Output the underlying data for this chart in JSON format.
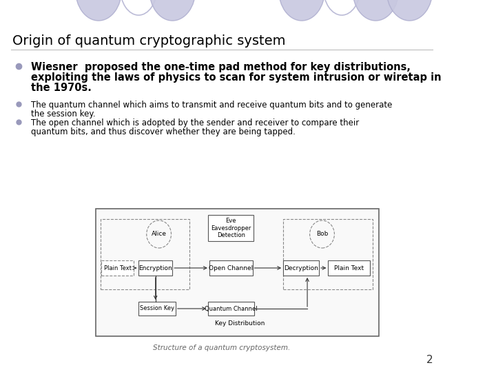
{
  "title": "Origin of quantum cryptographic system",
  "background_color": "#ffffff",
  "title_color": "#000000",
  "title_fontsize": 14,
  "bullet_color": "#9999bb",
  "bullet1_line1": "Wiesner  proposed the one-time pad method for key distributions,",
  "bullet1_line2": "exploiting the laws of physics to scan for system intrusion or wiretap in",
  "bullet1_line3": "the 1970s.",
  "bullet2_line1": "The quantum channel which aims to transmit and receive quantum bits and to generate",
  "bullet2_line2": "the session key.",
  "bullet3_line1": "The open channel which is adopted by the sender and receiver to compare their",
  "bullet3_line2": "quantum bits, and thus discover whether they are being tapped.",
  "caption": "Structure of a quantum cryptosystem.",
  "page_number": "2",
  "ellipse_fill": "#c8c8e0",
  "ellipse_outline": "#b0b0d0",
  "diagram_bg": "#ffffff",
  "diagram_border": "#666666",
  "box_border": "#555555",
  "arrow_color": "#333333"
}
